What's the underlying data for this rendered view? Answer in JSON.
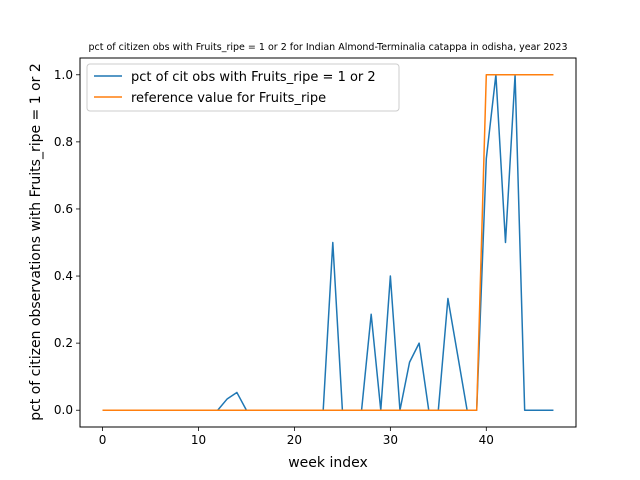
{
  "chart_data": {
    "type": "line",
    "title": "pct of citizen obs with Fruits_ripe = 1 or 2 for Indian Almond-Terminalia catappa in odisha, year 2023",
    "xlabel": "week index",
    "ylabel": "pct of citizen observations with Fruits_ripe = 1 or 2",
    "xlim": [
      -2.35,
      49.35
    ],
    "ylim": [
      -0.05,
      1.05
    ],
    "xticks": [
      0,
      10,
      20,
      30,
      40
    ],
    "yticks": [
      0.0,
      0.2,
      0.4,
      0.6,
      0.8,
      1.0
    ],
    "xtick_labels": [
      "0",
      "10",
      "20",
      "30",
      "40"
    ],
    "ytick_labels": [
      "0.0",
      "0.2",
      "0.4",
      "0.6",
      "0.8",
      "1.0"
    ],
    "legend_position": "top-left",
    "grid": false,
    "series": [
      {
        "name": "pct of cit obs with Fruits_ripe = 1 or 2",
        "color": "#1f77b4",
        "x": [
          0,
          1,
          2,
          3,
          4,
          5,
          6,
          7,
          8,
          9,
          10,
          11,
          12,
          13,
          14,
          15,
          16,
          17,
          18,
          19,
          20,
          21,
          22,
          23,
          24,
          25,
          26,
          27,
          28,
          29,
          30,
          31,
          32,
          33,
          34,
          35,
          36,
          37,
          38,
          39,
          40,
          41,
          42,
          43,
          44,
          45,
          46,
          47
        ],
        "y": [
          0,
          0,
          0,
          0,
          0,
          0,
          0,
          0,
          0,
          0,
          0,
          0,
          0,
          0.034,
          0.053,
          0,
          0,
          0,
          0,
          0,
          0,
          0,
          0,
          0,
          0.5,
          0,
          0,
          0,
          0.286,
          0,
          0.4,
          0,
          0.143,
          0.2,
          0,
          0,
          0.333,
          0.167,
          0,
          0,
          0.75,
          1.0,
          0.5,
          1.0,
          0,
          0,
          0,
          0
        ]
      },
      {
        "name": "reference value for Fruits_ripe",
        "color": "#ff7f0e",
        "x": [
          0,
          1,
          2,
          3,
          4,
          5,
          6,
          7,
          8,
          9,
          10,
          11,
          12,
          13,
          14,
          15,
          16,
          17,
          18,
          19,
          20,
          21,
          22,
          23,
          24,
          25,
          26,
          27,
          28,
          29,
          30,
          31,
          32,
          33,
          34,
          35,
          36,
          37,
          38,
          39,
          40,
          41,
          42,
          43,
          44,
          45,
          46,
          47
        ],
        "y": [
          0,
          0,
          0,
          0,
          0,
          0,
          0,
          0,
          0,
          0,
          0,
          0,
          0,
          0,
          0,
          0,
          0,
          0,
          0,
          0,
          0,
          0,
          0,
          0,
          0,
          0,
          0,
          0,
          0,
          0,
          0,
          0,
          0,
          0,
          0,
          0,
          0,
          0,
          0,
          0,
          1,
          1,
          1,
          1,
          1,
          1,
          1,
          1
        ]
      }
    ]
  }
}
